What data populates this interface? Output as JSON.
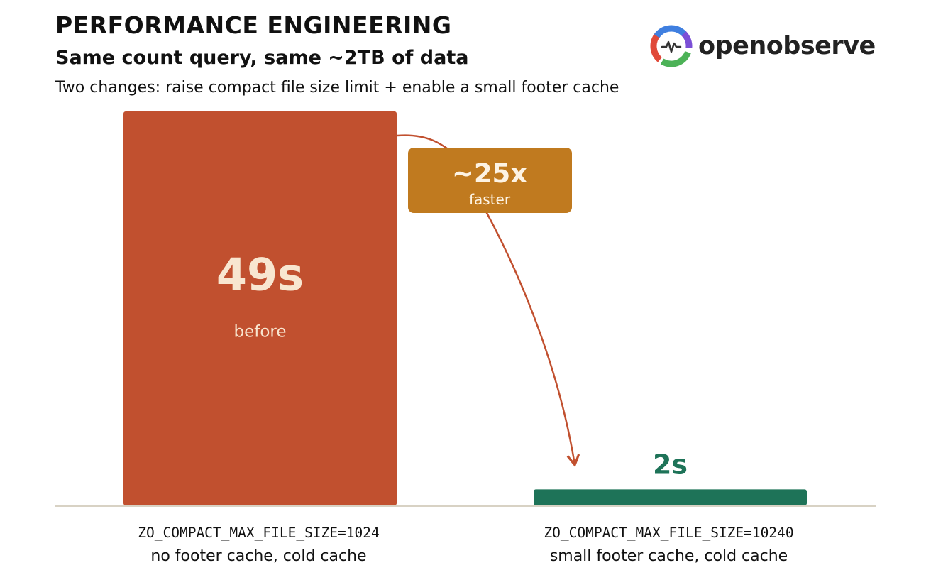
{
  "header": {
    "title": "PERFORMANCE ENGINEERING",
    "subtitle": "Same count query, same ~2TB of data",
    "description": "Two changes: raise compact file size limit + enable a small footer cache"
  },
  "logo": {
    "text": "openobserve",
    "icon": "openobserve-logo-icon"
  },
  "chart_data": {
    "type": "bar",
    "unit": "s",
    "ylim": [
      0,
      49
    ],
    "grid": false,
    "categories": [
      {
        "config": "ZO_COMPACT_MAX_FILE_SIZE=1024",
        "description": "no footer cache, cold cache"
      },
      {
        "config": "ZO_COMPACT_MAX_FILE_SIZE=10240",
        "description": "small footer cache, cold cache"
      }
    ],
    "values": [
      49,
      2
    ],
    "value_labels": [
      "49s",
      "2s"
    ],
    "bar_sublabels": [
      "before",
      ""
    ],
    "colors": [
      "#c1502f",
      "#1e7358"
    ],
    "annotation": {
      "value": "~25x",
      "text": "faster",
      "color": "#c07a1f"
    }
  },
  "colors": {
    "axis": "#d8d2c4",
    "arrow": "#c1502f",
    "bar_label_light": "#f8e6d0"
  }
}
